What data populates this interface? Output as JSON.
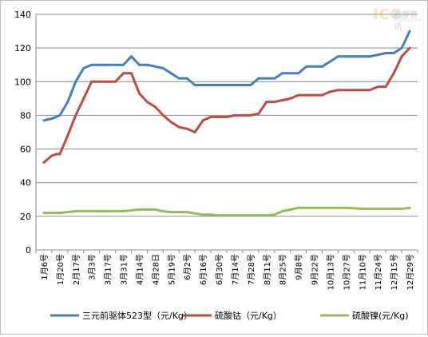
{
  "watermark": {
    "mark": "ICC",
    "cn": "鑫椤资讯",
    "en": "iccsino.com"
  },
  "chart_data": {
    "type": "line",
    "title": "",
    "xlabel": "",
    "ylabel": "",
    "ylim": [
      0,
      140
    ],
    "yticks": [
      0,
      20,
      40,
      60,
      80,
      100,
      120,
      140
    ],
    "grid": true,
    "legend_position": "bottom",
    "categories": [
      "1月6号",
      "1月20号",
      "2月17号",
      "3月3号",
      "3月17号",
      "3月31号",
      "4月14号",
      "4月28日",
      "5月19号",
      "6月2号",
      "6月16号",
      "6月30号",
      "7月14号",
      "7月28号",
      "8月11号",
      "8月25号",
      "9月8号",
      "9月22号",
      "10月13号",
      "10月27号",
      "11月10号",
      "11月24号",
      "12月15号",
      "12月29号"
    ],
    "series": [
      {
        "name": "三元前驱体523型（元/Kg）",
        "color": "#4a7ebb",
        "x": [
          0,
          0.5,
          1,
          1.5,
          2,
          2.5,
          3,
          3.5,
          4,
          4.5,
          5,
          5.5,
          6,
          6.5,
          7,
          7.5,
          8,
          8.5,
          9,
          9.5,
          10,
          10.5,
          11,
          11.5,
          12,
          12.5,
          13,
          13.5,
          14,
          14.5,
          15,
          15.5,
          16,
          16.5,
          17,
          17.5,
          18,
          18.5,
          19,
          19.5,
          20,
          20.5,
          21,
          21.5,
          22,
          22.5,
          23
        ],
        "values": [
          77,
          78,
          80,
          88,
          100,
          108,
          110,
          110,
          110,
          110,
          110,
          115,
          110,
          110,
          109,
          108,
          105,
          102,
          102,
          98,
          98,
          98,
          98,
          98,
          98,
          98,
          98,
          102,
          102,
          102,
          105,
          105,
          105,
          109,
          109,
          109,
          112,
          115,
          115,
          115,
          115,
          115,
          116,
          117,
          117,
          120,
          130
        ]
      },
      {
        "name": "硫酸钴（元/Kg）",
        "color": "#be4b48",
        "x": [
          0,
          0.5,
          0.8,
          1,
          1.5,
          2,
          2.5,
          3,
          3.5,
          4,
          4.5,
          5,
          5.5,
          6,
          6.5,
          7,
          7.5,
          8,
          8.5,
          9,
          9.5,
          10,
          10.5,
          11,
          11.5,
          12,
          12.5,
          13,
          13.5,
          14,
          14.5,
          15,
          15.5,
          16,
          16.5,
          17,
          17.5,
          18,
          18.5,
          19,
          19.5,
          20,
          20.5,
          21,
          21.5,
          22,
          22.5,
          23
        ],
        "values": [
          52,
          56,
          57,
          57,
          68,
          80,
          90,
          100,
          100,
          100,
          100,
          105,
          105,
          93,
          88,
          85,
          80,
          76,
          73,
          72,
          70,
          77,
          79,
          79,
          79,
          80,
          80,
          80,
          81,
          88,
          88,
          89,
          90,
          92,
          92,
          92,
          92,
          94,
          95,
          95,
          95,
          95,
          95,
          97,
          97,
          105,
          115,
          120
        ]
      },
      {
        "name": "硫酸镍(元/Kg)",
        "color": "#98b954",
        "x": [
          0,
          1,
          2,
          3,
          4,
          5,
          6,
          7,
          7.5,
          8,
          8.5,
          9,
          10,
          10.5,
          11,
          12,
          13,
          14,
          14.5,
          15,
          15.5,
          16,
          17,
          18,
          19,
          20,
          21,
          22,
          22.5,
          23
        ],
        "values": [
          22,
          22,
          23,
          23,
          23,
          23,
          24,
          24,
          23,
          22.5,
          22.5,
          22.5,
          21,
          21,
          20.5,
          20.5,
          20.5,
          20.5,
          21,
          23,
          24,
          25,
          25,
          25,
          25,
          24.5,
          24.5,
          24.5,
          24.5,
          25
        ]
      }
    ]
  }
}
